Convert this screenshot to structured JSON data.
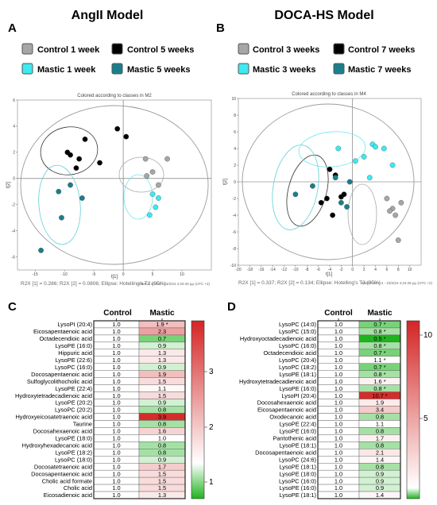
{
  "panels": {
    "A": {
      "letter": "A",
      "title": "AngII Model",
      "legend": [
        {
          "label": "Control 1 week",
          "color": "#a6a6a6"
        },
        {
          "label": "Control 5 weeks",
          "color": "#000000"
        },
        {
          "label": "Mastic 1 week",
          "color": "#3ee9f0"
        },
        {
          "label": "Mastic 5 weeks",
          "color": "#1a7f8c"
        }
      ],
      "plot_title": "Colored according to classes in M2",
      "xlabel": "t[1]",
      "ylabel": "t[2]",
      "caption": "R2X [1] = 0.286; R2X [2] = 0.0806; Ellipse: Hotelling's T2 (95%)",
      "footer": "SIMCA 17.0.2 - 23/2/24 4:20:40 μμ (UTC +2)"
    },
    "B": {
      "letter": "B",
      "title": "DOCA-HS Model",
      "legend": [
        {
          "label": "Control 3 weeks",
          "color": "#a6a6a6"
        },
        {
          "label": "Control 7 weeks",
          "color": "#000000"
        },
        {
          "label": "Mastic 3 weeks",
          "color": "#3ee9f0"
        },
        {
          "label": "Mastic 7 weeks",
          "color": "#1a7f8c"
        }
      ],
      "plot_title": "Colored according to classes in M4",
      "xlabel": "t[1]",
      "ylabel": "t[2]",
      "caption": "R2X [1] = 0.337; R2X [2] = 0.134; Ellipse: Hotelling's T2 (95%)",
      "footer": "SIMCA 17.0.2 - 23/2/24 4:24:28 μμ (UTC +2)"
    },
    "C": {
      "letter": "C",
      "col_control": "Control",
      "col_mastic": "Mastic",
      "colorbar_ticks": [
        "3",
        "2",
        "1"
      ]
    },
    "D": {
      "letter": "D",
      "col_control": "Control",
      "col_mastic": "Mastic",
      "colorbar_ticks": [
        "10",
        "5"
      ]
    }
  },
  "chart_data": [
    {
      "type": "scatter",
      "panel": "A",
      "title": "Colored according to classes in M2",
      "xlabel": "t[1]",
      "ylabel": "t[2]",
      "xlim": [
        -18,
        15
      ],
      "ylim": [
        -7,
        6
      ],
      "xticks": [
        -15,
        -10,
        -5,
        0,
        5,
        10
      ],
      "yticks": [
        -6,
        -4,
        -2,
        0,
        2,
        4,
        6
      ],
      "series": [
        {
          "name": "Control 1 week",
          "color": "#a6a6a6",
          "x": [
            4.0,
            5.0,
            6.0,
            7.5,
            3.8
          ],
          "y": [
            0.2,
            0.5,
            -0.5,
            1.5,
            1.5
          ]
        },
        {
          "name": "Control 5 weeks",
          "color": "#000000",
          "x": [
            -9.5,
            -8.0,
            -6.5,
            -4.0,
            -1.0,
            0.5,
            -7.5,
            -9.0
          ],
          "y": [
            2.0,
            0.8,
            3.0,
            1.2,
            3.8,
            3.2,
            1.5,
            1.8
          ]
        },
        {
          "name": "Mastic 1 week",
          "color": "#3ee9f0",
          "x": [
            5.0,
            6.0,
            4.5,
            5.5
          ],
          "y": [
            -1.2,
            -1.5,
            -2.8,
            -2.2
          ]
        },
        {
          "name": "Mastic 5 weeks",
          "color": "#1a7f8c",
          "x": [
            -9.0,
            -10.5,
            -7.0,
            -14.0,
            -11.0
          ],
          "y": [
            -0.5,
            -3.0,
            -1.5,
            -5.5,
            -1.0
          ]
        }
      ]
    },
    {
      "type": "scatter",
      "panel": "B",
      "title": "Colored according to classes in M4",
      "xlabel": "t[1]",
      "ylabel": "t[2]",
      "xlim": [
        -20,
        12
      ],
      "ylim": [
        -10,
        10
      ],
      "xticks": [
        -20,
        -18,
        -16,
        -14,
        -12,
        -10,
        -8,
        -6,
        -4,
        -2,
        0,
        2,
        4,
        6,
        8,
        10
      ],
      "yticks": [
        -10,
        -8,
        -6,
        -4,
        -2,
        0,
        2,
        4,
        6,
        8,
        10
      ],
      "series": [
        {
          "name": "Control 3 weeks",
          "color": "#a6a6a6",
          "x": [
            6.0,
            7.0,
            8.5,
            7.5,
            6.5,
            8.0
          ],
          "y": [
            -2.0,
            -3.2,
            -2.5,
            -4.0,
            -3.5,
            -7.0
          ]
        },
        {
          "name": "Control 7 weeks",
          "color": "#000000",
          "x": [
            -4.0,
            -3.0,
            -2.0,
            -1.5,
            -4.5,
            -5.5,
            -3.5
          ],
          "y": [
            1.5,
            0.8,
            -1.8,
            -1.5,
            -2.0,
            -2.5,
            -4.0
          ]
        },
        {
          "name": "Mastic 3 weeks",
          "color": "#3ee9f0",
          "x": [
            -2.5,
            0.5,
            2.0,
            3.5,
            4.0,
            5.5,
            7.0,
            3.0
          ],
          "y": [
            4.0,
            2.5,
            3.0,
            4.5,
            4.2,
            4.0,
            2.0,
            0.5
          ]
        },
        {
          "name": "Mastic 7 weeks",
          "color": "#1a7f8c",
          "x": [
            -10.0,
            -7.0,
            -3.0,
            -0.5,
            -2.0,
            -1.0
          ],
          "y": [
            -1.5,
            -0.5,
            0.5,
            0.0,
            -2.5,
            -3.0
          ]
        }
      ]
    },
    {
      "type": "heatmap",
      "panel": "C",
      "columns": [
        "Control",
        "Mastic"
      ],
      "color_range": [
        0.5,
        4.0
      ],
      "rows": [
        {
          "label": "LysoPI (20:4)",
          "control": "1.0",
          "mastic": "1.9",
          "star": true,
          "value": 1.9
        },
        {
          "label": "Eicosapentaenoic acid",
          "control": "1.0",
          "mastic": "2.3",
          "star": false,
          "value": 2.3
        },
        {
          "label": "Octadecendioic acid",
          "control": "1.0",
          "mastic": "0.7",
          "star": false,
          "value": 0.7
        },
        {
          "label": "LysoPE (16:0)",
          "control": "1.0",
          "mastic": "0.9",
          "star": false,
          "value": 0.9
        },
        {
          "label": "Hippuric acid",
          "control": "1.0",
          "mastic": "1.3",
          "star": false,
          "value": 1.3
        },
        {
          "label": "LysoPE (22:6)",
          "control": "1.0",
          "mastic": "1.3",
          "star": false,
          "value": 1.3
        },
        {
          "label": "LysoPC (16:0)",
          "control": "1.0",
          "mastic": "0.9",
          "star": false,
          "value": 0.9
        },
        {
          "label": "Docosapentaenoic acid",
          "control": "1.0",
          "mastic": "1.9",
          "star": false,
          "value": 1.9
        },
        {
          "label": "Sulfoglycolithocholic acid",
          "control": "1.0",
          "mastic": "1.5",
          "star": false,
          "value": 1.5
        },
        {
          "label": "LysoPE (22:4)",
          "control": "1.0",
          "mastic": "1.1",
          "star": false,
          "value": 1.1
        },
        {
          "label": "Hydroxytetradecadienoic acid",
          "control": "1.0",
          "mastic": "1.5",
          "star": false,
          "value": 1.5
        },
        {
          "label": "LysoPE (20:2)",
          "control": "1.0",
          "mastic": "0.9",
          "star": false,
          "value": 0.9
        },
        {
          "label": "LysoPC (20:2)",
          "control": "1.0",
          "mastic": "0.8",
          "star": false,
          "value": 0.8
        },
        {
          "label": "Hydroxyeicosatetraenoic acid",
          "control": "1.0",
          "mastic": "3.9",
          "star": false,
          "value": 3.9
        },
        {
          "label": "Taurine",
          "control": "1.0",
          "mastic": "0.8",
          "star": false,
          "value": 0.8
        },
        {
          "label": "Docosahexaenoic acid",
          "control": "1.0",
          "mastic": "1.6",
          "star": false,
          "value": 1.6
        },
        {
          "label": "LysoPE (18:0)",
          "control": "1.0",
          "mastic": "1.0",
          "star": false,
          "value": 1.0
        },
        {
          "label": "Hydroxyhexadecanoic acid",
          "control": "1.0",
          "mastic": "0.8",
          "star": false,
          "value": 0.8
        },
        {
          "label": "LysoPE (18:2)",
          "control": "1.0",
          "mastic": "0.8",
          "star": false,
          "value": 0.8
        },
        {
          "label": "LysoPC (18:0)",
          "control": "1.0",
          "mastic": "0.9",
          "star": false,
          "value": 0.9
        },
        {
          "label": "Docosatetraenoic acid",
          "control": "1.0",
          "mastic": "1.7",
          "star": false,
          "value": 1.7
        },
        {
          "label": "Docosapentaenoic acid",
          "control": "1.0",
          "mastic": "1.5",
          "star": false,
          "value": 1.5
        },
        {
          "label": "Cholic acid formate",
          "control": "1.0",
          "mastic": "1.5",
          "star": false,
          "value": 1.5
        },
        {
          "label": "Cholic acid",
          "control": "1.0",
          "mastic": "1.5",
          "star": false,
          "value": 1.5
        },
        {
          "label": "Eicosadienoic acid",
          "control": "1.0",
          "mastic": "1.3",
          "star": false,
          "value": 1.3
        }
      ]
    },
    {
      "type": "heatmap",
      "panel": "D",
      "columns": [
        "Control",
        "Mastic"
      ],
      "color_range": [
        0.5,
        11.0
      ],
      "rows": [
        {
          "label": "LysoPC (14:0)",
          "control": "1.0",
          "mastic": "0.7",
          "star": true,
          "value": 0.7
        },
        {
          "label": "LysoPC (15:0)",
          "control": "1.0",
          "mastic": "0.8",
          "star": true,
          "value": 0.8
        },
        {
          "label": "Hydroxyoctadecadienoic acid",
          "control": "1.0",
          "mastic": "0.5",
          "star": true,
          "value": 0.5
        },
        {
          "label": "LysoPC (16:0)",
          "control": "1.0",
          "mastic": "0.8",
          "star": true,
          "value": 0.8
        },
        {
          "label": "Octadecendioic acid",
          "control": "1.0",
          "mastic": "0.7",
          "star": true,
          "value": 0.7
        },
        {
          "label": "LysoPC (20:4)",
          "control": "1.0",
          "mastic": "1.1",
          "star": true,
          "value": 1.1
        },
        {
          "label": "LysoPC (18:2)",
          "control": "1.0",
          "mastic": "0.7",
          "star": true,
          "value": 0.7
        },
        {
          "label": "LysoPE (18:1)",
          "control": "1.0",
          "mastic": "0.8",
          "star": true,
          "value": 0.8
        },
        {
          "label": "Hydroxytetradecadienoic acid",
          "control": "1.0",
          "mastic": "1.6",
          "star": true,
          "value": 1.6
        },
        {
          "label": "LysoPE (16:0)",
          "control": "1.0",
          "mastic": "0.8",
          "star": true,
          "value": 0.8
        },
        {
          "label": "LysoPI (20:4)",
          "control": "1.0",
          "mastic": "10.7",
          "star": true,
          "value": 10.7
        },
        {
          "label": "Docosahexaenoic acid",
          "control": "1.0",
          "mastic": "1.9",
          "star": false,
          "value": 1.9
        },
        {
          "label": "Eicosapentaenoic acid",
          "control": "1.0",
          "mastic": "3.4",
          "star": false,
          "value": 3.4
        },
        {
          "label": "Oxodecanoic acid",
          "control": "1.0",
          "mastic": "0.8",
          "star": false,
          "value": 0.8
        },
        {
          "label": "LysoPE (22:4)",
          "control": "1.0",
          "mastic": "1.1",
          "star": false,
          "value": 1.1
        },
        {
          "label": "LysoPE (16:0)",
          "control": "1.0",
          "mastic": "0.8",
          "star": false,
          "value": 0.8
        },
        {
          "label": "Pantothenic acid",
          "control": "1.0",
          "mastic": "1.7",
          "star": false,
          "value": 1.7
        },
        {
          "label": "LysoPE (18:1)",
          "control": "1.0",
          "mastic": "0.8",
          "star": false,
          "value": 0.8
        },
        {
          "label": "Docosapentaenoic acid",
          "control": "1.0",
          "mastic": "2.1",
          "star": false,
          "value": 2.1
        },
        {
          "label": "LysoPC (24:6)",
          "control": "1.0",
          "mastic": "1.4",
          "star": false,
          "value": 1.4
        },
        {
          "label": "LysoPE (18:1)",
          "control": "1.0",
          "mastic": "0.8",
          "star": false,
          "value": 0.8
        },
        {
          "label": "LysoPE (18:0)",
          "control": "1.0",
          "mastic": "0.9",
          "star": false,
          "value": 0.9
        },
        {
          "label": "LysoPC (16:0)",
          "control": "1.0",
          "mastic": "0.9",
          "star": false,
          "value": 0.9
        },
        {
          "label": "LysoPE (16:0)",
          "control": "1.0",
          "mastic": "0.9",
          "star": false,
          "value": 0.9
        },
        {
          "label": "LysoPE (18:1)",
          "control": "1.0",
          "mastic": "1.4",
          "star": false,
          "value": 1.4
        }
      ]
    }
  ]
}
